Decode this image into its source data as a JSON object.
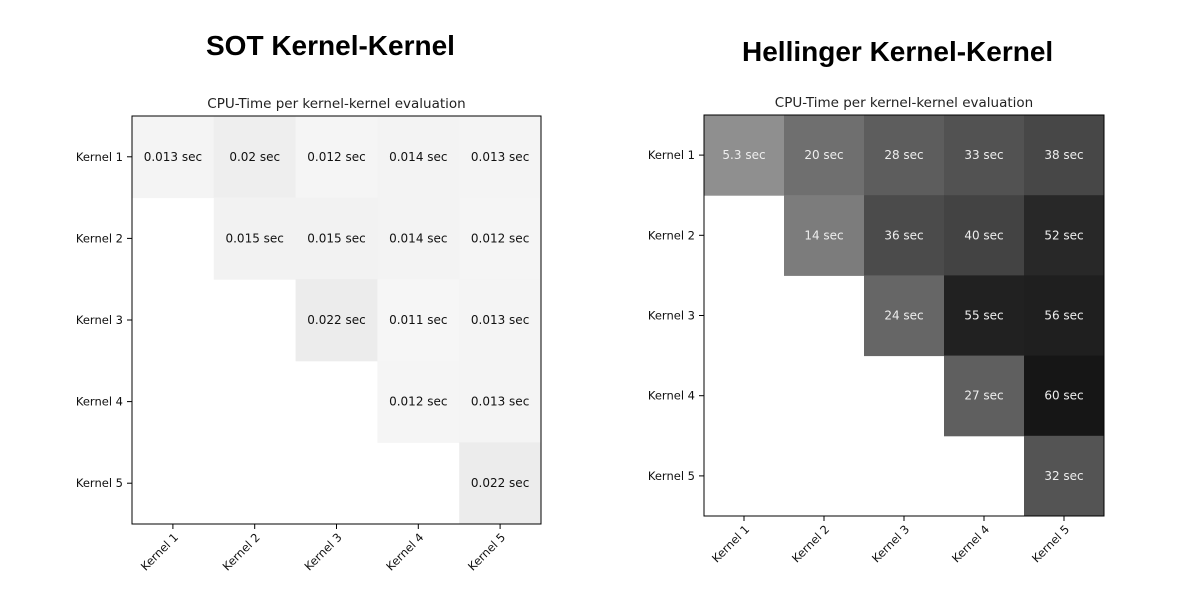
{
  "chart_data": [
    {
      "type": "heatmap",
      "title": "SOT Kernel-Kernel",
      "subtitle": "CPU-Time per kernel-kernel evaluation",
      "x_categories": [
        "Kernel 1",
        "Kernel 2",
        "Kernel 3",
        "Kernel 4",
        "Kernel 5"
      ],
      "y_categories": [
        "Kernel 1",
        "Kernel 2",
        "Kernel 3",
        "Kernel 4",
        "Kernel 5"
      ],
      "cells": [
        {
          "row": 0,
          "col": 0,
          "value": 0.013,
          "label": "0.013 sec"
        },
        {
          "row": 0,
          "col": 1,
          "value": 0.02,
          "label": "0.02 sec"
        },
        {
          "row": 0,
          "col": 2,
          "value": 0.012,
          "label": "0.012 sec"
        },
        {
          "row": 0,
          "col": 3,
          "value": 0.014,
          "label": "0.014 sec"
        },
        {
          "row": 0,
          "col": 4,
          "value": 0.013,
          "label": "0.013 sec"
        },
        {
          "row": 1,
          "col": 1,
          "value": 0.015,
          "label": "0.015 sec"
        },
        {
          "row": 1,
          "col": 2,
          "value": 0.015,
          "label": "0.015 sec"
        },
        {
          "row": 1,
          "col": 3,
          "value": 0.014,
          "label": "0.014 sec"
        },
        {
          "row": 1,
          "col": 4,
          "value": 0.012,
          "label": "0.012 sec"
        },
        {
          "row": 2,
          "col": 2,
          "value": 0.022,
          "label": "0.022 sec"
        },
        {
          "row": 2,
          "col": 3,
          "value": 0.011,
          "label": "0.011 sec"
        },
        {
          "row": 2,
          "col": 4,
          "value": 0.013,
          "label": "0.013 sec"
        },
        {
          "row": 3,
          "col": 3,
          "value": 0.012,
          "label": "0.012 sec"
        },
        {
          "row": 3,
          "col": 4,
          "value": 0.013,
          "label": "0.013 sec"
        },
        {
          "row": 4,
          "col": 4,
          "value": 0.022,
          "label": "0.022 sec"
        }
      ],
      "colormap": "greys",
      "color_range": [
        0,
        0.3
      ],
      "text_color": "#111111",
      "grid": false
    },
    {
      "type": "heatmap",
      "title": "Hellinger Kernel-Kernel",
      "subtitle": "CPU-Time per kernel-kernel evaluation",
      "x_categories": [
        "Kernel 1",
        "Kernel 2",
        "Kernel 3",
        "Kernel 4",
        "Kernel 5"
      ],
      "y_categories": [
        "Kernel 1",
        "Kernel 2",
        "Kernel 3",
        "Kernel 4",
        "Kernel 5"
      ],
      "cells": [
        {
          "row": 0,
          "col": 0,
          "value": 5.3,
          "label": "5.3 sec"
        },
        {
          "row": 0,
          "col": 1,
          "value": 20,
          "label": "20 sec"
        },
        {
          "row": 0,
          "col": 2,
          "value": 28,
          "label": "28 sec"
        },
        {
          "row": 0,
          "col": 3,
          "value": 33,
          "label": "33 sec"
        },
        {
          "row": 0,
          "col": 4,
          "value": 38,
          "label": "38 sec"
        },
        {
          "row": 1,
          "col": 1,
          "value": 14,
          "label": "14 sec"
        },
        {
          "row": 1,
          "col": 2,
          "value": 36,
          "label": "36 sec"
        },
        {
          "row": 1,
          "col": 3,
          "value": 40,
          "label": "40 sec"
        },
        {
          "row": 1,
          "col": 4,
          "value": 52,
          "label": "52 sec"
        },
        {
          "row": 2,
          "col": 2,
          "value": 24,
          "label": "24 sec"
        },
        {
          "row": 2,
          "col": 3,
          "value": 55,
          "label": "55 sec"
        },
        {
          "row": 2,
          "col": 4,
          "value": 56,
          "label": "56 sec"
        },
        {
          "row": 3,
          "col": 3,
          "value": 27,
          "label": "27 sec"
        },
        {
          "row": 3,
          "col": 4,
          "value": 60,
          "label": "60 sec"
        },
        {
          "row": 4,
          "col": 4,
          "value": 32,
          "label": "32 sec"
        }
      ],
      "colormap": "greys",
      "color_range": [
        -45,
        70
      ],
      "text_color": "#eeeeee",
      "grid": false
    }
  ]
}
